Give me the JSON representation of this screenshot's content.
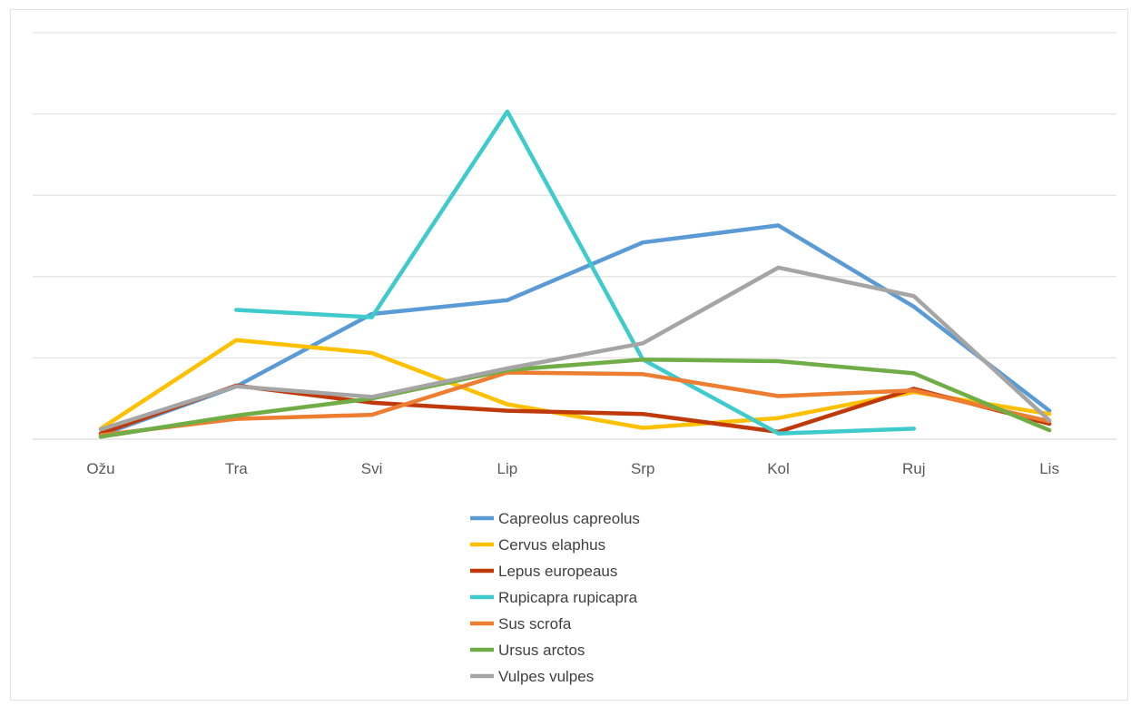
{
  "chart_data": {
    "type": "line",
    "categories": [
      "Ožu",
      "Tra",
      "Svi",
      "Lip",
      "Srp",
      "Kol",
      "Ruj",
      "Lis"
    ],
    "ylim": [
      0,
      5
    ],
    "y_gridlines": [
      0,
      1,
      2,
      3,
      4,
      5
    ],
    "y_tick_labels_shown": false,
    "grid": true,
    "legend_position": "bottom",
    "series": [
      {
        "name": "Capreolus capreolus",
        "color": "#5B9BD5",
        "values": [
          0.05,
          0.65,
          1.54,
          1.71,
          2.42,
          2.63,
          1.63,
          0.35
        ]
      },
      {
        "name": "Cervus elaphus",
        "color": "#FFC000",
        "values": [
          0.13,
          1.22,
          1.06,
          0.43,
          0.14,
          0.26,
          0.58,
          0.31
        ]
      },
      {
        "name": "Lepus europeaus",
        "color": "#C0390B",
        "values": [
          0.07,
          0.66,
          0.45,
          0.35,
          0.31,
          0.09,
          0.62,
          0.19
        ]
      },
      {
        "name": "Rupicapra rupicapra",
        "color": "#3FCBCB",
        "values": [
          null,
          1.59,
          1.5,
          4.03,
          0.98,
          0.07,
          0.13,
          null
        ]
      },
      {
        "name": "Sus scrofa",
        "color": "#ED7D31",
        "values": [
          0.05,
          0.25,
          0.3,
          0.82,
          0.8,
          0.53,
          0.6,
          0.22
        ]
      },
      {
        "name": "Ursus arctos",
        "color": "#70AD47",
        "values": [
          0.03,
          0.29,
          0.5,
          0.85,
          0.98,
          0.96,
          0.81,
          0.11
        ]
      },
      {
        "name": "Vulpes vulpes",
        "color": "#A5A5A5",
        "values": [
          0.12,
          0.65,
          0.52,
          0.87,
          1.18,
          2.11,
          1.76,
          0.23
        ]
      }
    ]
  }
}
